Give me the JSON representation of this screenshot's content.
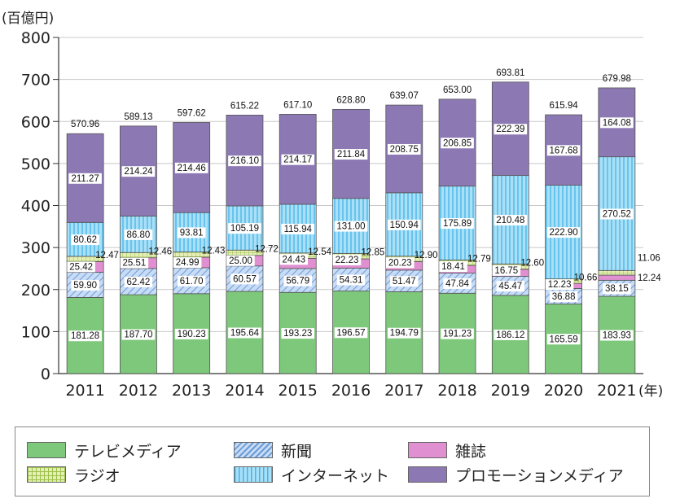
{
  "chart_data": {
    "type": "bar",
    "stacked": true,
    "y_unit_label": "(百億円)",
    "x_unit_label": "(年)",
    "ylim": [
      0,
      800
    ],
    "yticks": [
      0,
      100,
      200,
      300,
      400,
      500,
      600,
      700,
      800
    ],
    "grid": true,
    "legend_position": "bottom",
    "categories": [
      "2011",
      "2012",
      "2013",
      "2014",
      "2015",
      "2016",
      "2017",
      "2018",
      "2019",
      "2020",
      "2021"
    ],
    "series": [
      {
        "name": "テレビメディア",
        "color": "#7dc87a",
        "values": [
          181.28,
          187.7,
          190.23,
          195.64,
          193.23,
          196.57,
          194.79,
          191.23,
          186.12,
          165.59,
          183.93
        ]
      },
      {
        "name": "新聞",
        "color": "#b7d1f0",
        "values": [
          59.9,
          62.42,
          61.7,
          60.57,
          56.79,
          54.31,
          51.47,
          47.84,
          45.47,
          36.88,
          38.15
        ]
      },
      {
        "name": "雑誌",
        "color": "#e08fd0",
        "values": [
          25.42,
          25.51,
          24.99,
          25.0,
          24.43,
          22.23,
          20.23,
          18.41,
          16.75,
          12.23,
          12.24
        ]
      },
      {
        "name": "ラジオ",
        "color": "#d5e89a",
        "values": [
          12.47,
          12.46,
          12.43,
          12.72,
          12.54,
          12.85,
          12.9,
          12.79,
          12.6,
          10.66,
          11.06
        ]
      },
      {
        "name": "インターネット",
        "color": "#8ed4f2",
        "values": [
          80.62,
          86.8,
          93.81,
          105.19,
          115.94,
          131.0,
          150.94,
          175.89,
          210.48,
          222.9,
          270.52
        ]
      },
      {
        "name": "プロモーションメディア",
        "color": "#8c78b3",
        "values": [
          211.27,
          214.24,
          214.46,
          216.1,
          214.17,
          211.84,
          208.75,
          206.85,
          222.39,
          167.68,
          164.08
        ]
      }
    ],
    "totals": [
      570.96,
      589.13,
      597.62,
      615.22,
      617.1,
      628.8,
      639.07,
      653.0,
      693.81,
      615.94,
      679.98
    ],
    "value_labels": {
      "tv": [
        "181.28",
        "187.70",
        "190.23",
        "195.64",
        "193.23",
        "196.57",
        "194.79",
        "191.23",
        "186.12",
        "165.59",
        "183.93"
      ],
      "newspaper": [
        "59.90",
        "62.42",
        "61.70",
        "60.57",
        "56.79",
        "54.31",
        "51.47",
        "47.84",
        "45.47",
        "36.88",
        "38.15"
      ],
      "magazine": [
        "25.42",
        "25.51",
        "24.99",
        "25.00",
        "24.43",
        "22.23",
        "20.23",
        "18.41",
        "16.75",
        "12.23",
        "12.24"
      ],
      "radio": [
        "12.47",
        "12.46",
        "12.43",
        "12.72",
        "12.54",
        "12.85",
        "12.90",
        "12.79",
        "12.60",
        "10.66",
        "11.06"
      ],
      "internet": [
        "80.62",
        "86.80",
        "93.81",
        "105.19",
        "115.94",
        "131.00",
        "150.94",
        "175.89",
        "210.48",
        "222.90",
        "270.52"
      ],
      "promotion": [
        "211.27",
        "214.24",
        "214.46",
        "216.10",
        "214.17",
        "211.84",
        "208.75",
        "206.85",
        "222.39",
        "167.68",
        "164.08"
      ],
      "totals": [
        "570.96",
        "589.13",
        "597.62",
        "615.22",
        "617.10",
        "628.80",
        "639.07",
        "653.00",
        "693.81",
        "615.94",
        "679.98"
      ]
    }
  },
  "legend": {
    "items": [
      {
        "label": "テレビメディア",
        "pattern": "solid-green"
      },
      {
        "label": "新聞",
        "pattern": "diagonal-blue"
      },
      {
        "label": "雑誌",
        "pattern": "solid-pink"
      },
      {
        "label": "ラジオ",
        "pattern": "grid-yellowgreen"
      },
      {
        "label": "インターネット",
        "pattern": "vertical-cyan"
      },
      {
        "label": "プロモーションメディア",
        "pattern": "solid-purple"
      }
    ]
  }
}
